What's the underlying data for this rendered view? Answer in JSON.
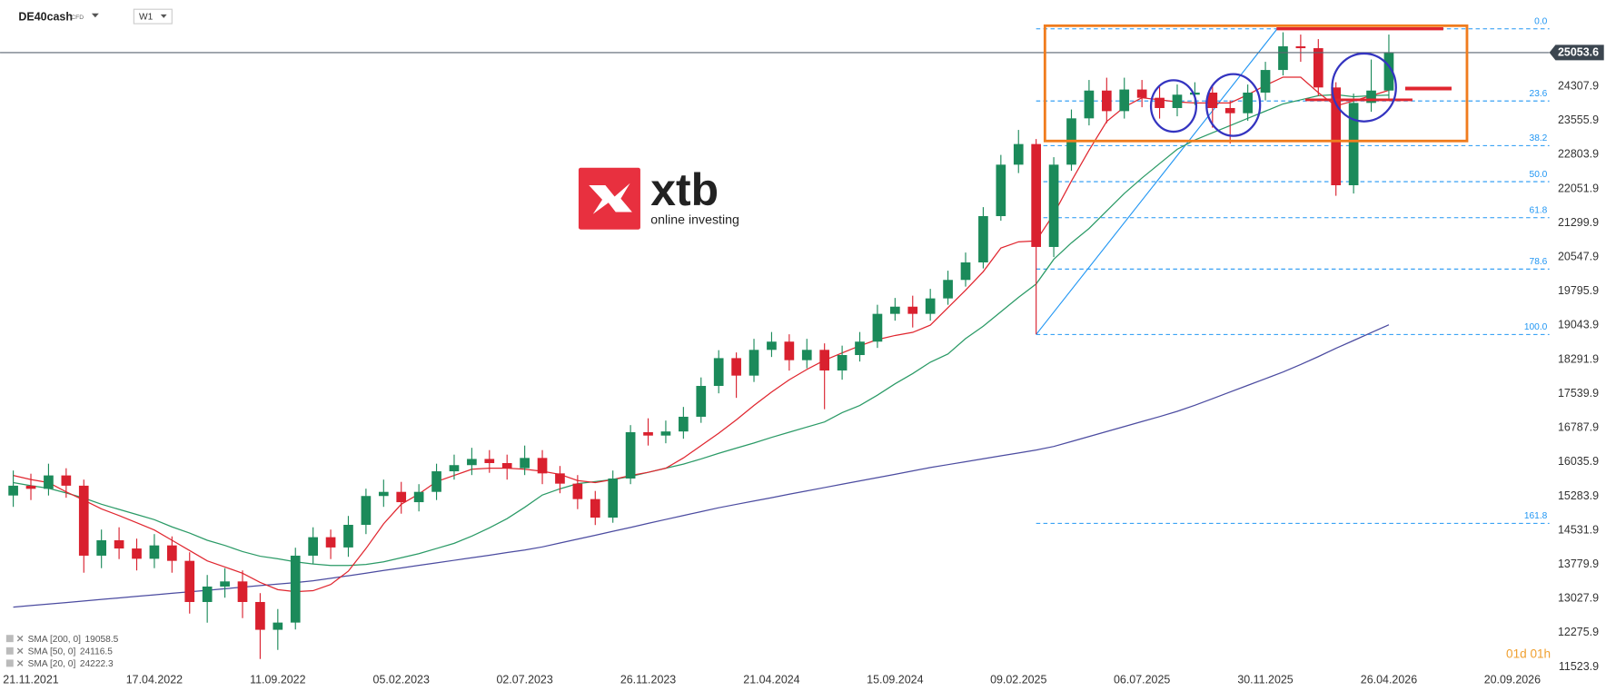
{
  "header": {
    "symbol": "DE40cash",
    "instrument_type": "CFD",
    "timeframe": "W1",
    "time_left": "01d 01h"
  },
  "logo": {
    "name": "xtb",
    "tagline": "online investing"
  },
  "chart_data": {
    "type": "candlestick",
    "up_color": "#1b8a5a",
    "down_color": "#d9202e",
    "x": [
      -3,
      0,
      3,
      6,
      9,
      12,
      15,
      18,
      21,
      24,
      27,
      30,
      33,
      36,
      39,
      42,
      45,
      48,
      51,
      54,
      57,
      60,
      63,
      66,
      69,
      72,
      75,
      78,
      81,
      84,
      87,
      90,
      93,
      96,
      99,
      102,
      105,
      108,
      111,
      114,
      117,
      120,
      123,
      126,
      129,
      132,
      135,
      138,
      141,
      144,
      147,
      150,
      153,
      156,
      159,
      162,
      165,
      168,
      171,
      174,
      177,
      180,
      183,
      186,
      189,
      192,
      195,
      198,
      201,
      204,
      207,
      210,
      213,
      216,
      219,
      222,
      225,
      228,
      231
    ],
    "open": [
      15300,
      15516,
      15447,
      15742,
      15516,
      13975,
      14314,
      14133,
      13907,
      14201,
      13861,
      12955,
      13295,
      13408,
      12955,
      12343,
      12502,
      13975,
      14382,
      14156,
      14654,
      15289,
      15380,
      15153,
      15380,
      15833,
      15969,
      16105,
      16014,
      15901,
      16127,
      15787,
      15561,
      15221,
      14813,
      15674,
      16694,
      16620,
      16710,
      17034,
      17713,
      18325,
      17940,
      18507,
      18688,
      18280,
      18507,
      18053,
      18393,
      18688,
      19300,
      19458,
      19300,
      19640,
      20047,
      20433,
      21452,
      22585,
      23039,
      20773,
      22585,
      23605,
      24217,
      23764,
      24240,
      24058,
      23832,
      24126,
      24172,
      23832,
      23718,
      24172,
      24670,
      25191,
      25150,
      24285,
      22132,
      23945,
      24217
    ],
    "high": [
      15850,
      15780,
      16000,
      15900,
      15650,
      14550,
      14600,
      14350,
      14450,
      14400,
      14050,
      13550,
      13700,
      13650,
      13150,
      12800,
      14150,
      14600,
      14550,
      14850,
      15450,
      15650,
      15600,
      15550,
      16000,
      16200,
      16350,
      16300,
      16200,
      16400,
      16300,
      15950,
      15750,
      15400,
      15850,
      16850,
      17000,
      16950,
      17250,
      17900,
      18500,
      18450,
      18750,
      18900,
      18850,
      18750,
      18650,
      18600,
      18900,
      19500,
      19650,
      19700,
      19850,
      20250,
      20650,
      21650,
      22800,
      23350,
      23150,
      22750,
      23800,
      24450,
      24500,
      24500,
      24450,
      24300,
      24350,
      24400,
      24350,
      24000,
      24350,
      24850,
      25500,
      25450,
      25350,
      24400,
      24150,
      24900,
      25450
    ],
    "low": [
      15050,
      15200,
      15300,
      15250,
      13600,
      13700,
      13900,
      13650,
      13700,
      13600,
      12700,
      12500,
      13050,
      12600,
      11700,
      11900,
      12350,
      13800,
      13900,
      13950,
      14450,
      15050,
      14900,
      14950,
      15200,
      15650,
      15750,
      15800,
      15650,
      15750,
      15550,
      15350,
      15000,
      14650,
      14700,
      15550,
      16400,
      16450,
      16550,
      16900,
      17550,
      17450,
      17800,
      18350,
      18050,
      18100,
      17200,
      17850,
      18250,
      18550,
      19150,
      19000,
      19150,
      19500,
      19900,
      20300,
      21350,
      22400,
      18850,
      20550,
      22450,
      23450,
      23500,
      23600,
      23850,
      23600,
      23650,
      23900,
      23400,
      23050,
      23550,
      24000,
      24550,
      24850,
      24100,
      21900,
      21950,
      23750,
      24000
    ],
    "close": [
      15516,
      15447,
      15742,
      15516,
      13975,
      14314,
      14133,
      13907,
      14201,
      13861,
      12955,
      13295,
      13408,
      12955,
      12343,
      12502,
      13975,
      14382,
      14156,
      14654,
      15289,
      15380,
      15153,
      15380,
      15833,
      15969,
      16105,
      16014,
      15901,
      16127,
      15787,
      15561,
      15221,
      14813,
      15674,
      16694,
      16620,
      16710,
      17034,
      17713,
      18325,
      17940,
      18507,
      18688,
      18280,
      18507,
      18053,
      18393,
      18688,
      19300,
      19458,
      19300,
      19640,
      20047,
      20433,
      21452,
      22585,
      23039,
      20773,
      22585,
      23605,
      24217,
      23764,
      24240,
      24058,
      23832,
      24126,
      24172,
      23832,
      23718,
      24172,
      24670,
      25191,
      25150,
      24285,
      22132,
      23945,
      24217,
      25053.6
    ],
    "series": [
      {
        "name": "SMA [200, 0]",
        "color": "#4b4ba0",
        "values": [
          12842,
          12876,
          12909,
          12943,
          12976,
          13012,
          13045,
          13079,
          13112,
          13146,
          13180,
          13213,
          13247,
          13282,
          13316,
          13349,
          13383,
          13421,
          13477,
          13533,
          13589,
          13649,
          13705,
          13761,
          13817,
          13873,
          13929,
          13985,
          14044,
          14100,
          14168,
          14254,
          14340,
          14425,
          14511,
          14597,
          14687,
          14773,
          14859,
          14944,
          15030,
          15105,
          15178,
          15251,
          15328,
          15402,
          15475,
          15548,
          15621,
          15694,
          15767,
          15841,
          15916,
          15980,
          16044,
          16108,
          16173,
          16237,
          16301,
          16380,
          16489,
          16599,
          16709,
          16818,
          16928,
          17037,
          17153,
          17287,
          17433,
          17580,
          17726,
          17872,
          18019,
          18185,
          18358,
          18541,
          18713,
          18886,
          19058.5
        ]
      },
      {
        "name": "SMA [50, 0]",
        "color": "#2a9a66",
        "values": [
          15584,
          15516,
          15459,
          15357,
          15244,
          15108,
          14994,
          14881,
          14768,
          14609,
          14473,
          14314,
          14201,
          14065,
          13963,
          13907,
          13839,
          13793,
          13759,
          13759,
          13782,
          13839,
          13930,
          14020,
          14133,
          14247,
          14405,
          14587,
          14790,
          15040,
          15311,
          15447,
          15561,
          15606,
          15651,
          15719,
          15810,
          15901,
          15991,
          16105,
          16229,
          16343,
          16456,
          16580,
          16694,
          16807,
          16920,
          17124,
          17283,
          17510,
          17759,
          17985,
          18235,
          18416,
          18756,
          19028,
          19345,
          19662,
          19957,
          20501,
          20863,
          21180,
          21566,
          21951,
          22291,
          22608,
          22925,
          23129,
          23288,
          23446,
          23605,
          23764,
          23922,
          24013,
          24104,
          24126,
          24081,
          24104,
          24116.5
        ]
      },
      {
        "name": "SMA [20, 0]",
        "color": "#e0262f",
        "values": [
          15742,
          15651,
          15584,
          15380,
          15198,
          15006,
          14858,
          14700,
          14541,
          14314,
          14088,
          13861,
          13725,
          13589,
          13385,
          13227,
          13182,
          13204,
          13340,
          13635,
          14133,
          14677,
          15108,
          15334,
          15606,
          15742,
          15878,
          15901,
          15901,
          15878,
          15833,
          15765,
          15629,
          15584,
          15651,
          15742,
          15810,
          15901,
          16127,
          16399,
          16671,
          16966,
          17283,
          17578,
          17849,
          18076,
          18280,
          18439,
          18597,
          18733,
          18824,
          18892,
          19051,
          19436,
          19821,
          20229,
          20750,
          20886,
          20908,
          21498,
          22223,
          22903,
          23537,
          23854,
          24058,
          24013,
          23967,
          23945,
          23945,
          23945,
          24126,
          24330,
          24512,
          24512,
          24172,
          23877,
          23990,
          24104,
          24222.3
        ]
      }
    ],
    "fibonacci": {
      "color": "#2196f3",
      "x": [
        171,
        212
      ],
      "values": [
        18846,
        25576
      ],
      "levels": [
        {
          "value": 0,
          "label": "0.0"
        },
        23.6,
        38.2,
        {
          "value": 50,
          "label": "50.0"
        },
        61.8,
        78.6,
        {
          "value": 100,
          "label": "100.0"
        },
        161.8
      ]
    },
    "xlim": [
      -5.25,
      258.3
    ],
    "xticks": [
      {
        "value": 0,
        "label": "21.11.2021"
      },
      {
        "value": 21,
        "label": "17.04.2022"
      },
      {
        "value": 42,
        "label": "11.09.2022"
      },
      {
        "value": 63,
        "label": "05.02.2023"
      },
      {
        "value": 84,
        "label": "02.07.2023"
      },
      {
        "value": 105,
        "label": "26.11.2023"
      },
      {
        "value": 126,
        "label": "21.04.2024"
      },
      {
        "value": 147,
        "label": "15.09.2024"
      },
      {
        "value": 168,
        "label": "09.02.2025"
      },
      {
        "value": 189,
        "label": "06.07.2025"
      },
      {
        "value": 210,
        "label": "30.11.2025"
      },
      {
        "value": 231,
        "label": "26.04.2026"
      },
      {
        "value": 252,
        "label": "20.09.2026"
      }
    ],
    "ylim": [
      11369,
      26211
    ],
    "yticks": [
      24307.9,
      23555.9,
      22803.9,
      22051.9,
      21299.9,
      20547.9,
      19795.9,
      19043.9,
      18291.9,
      17539.9,
      16787.9,
      16035.9,
      15283.9,
      14531.9,
      13779.9,
      13027.9,
      12275.9,
      11523.9
    ]
  }
}
